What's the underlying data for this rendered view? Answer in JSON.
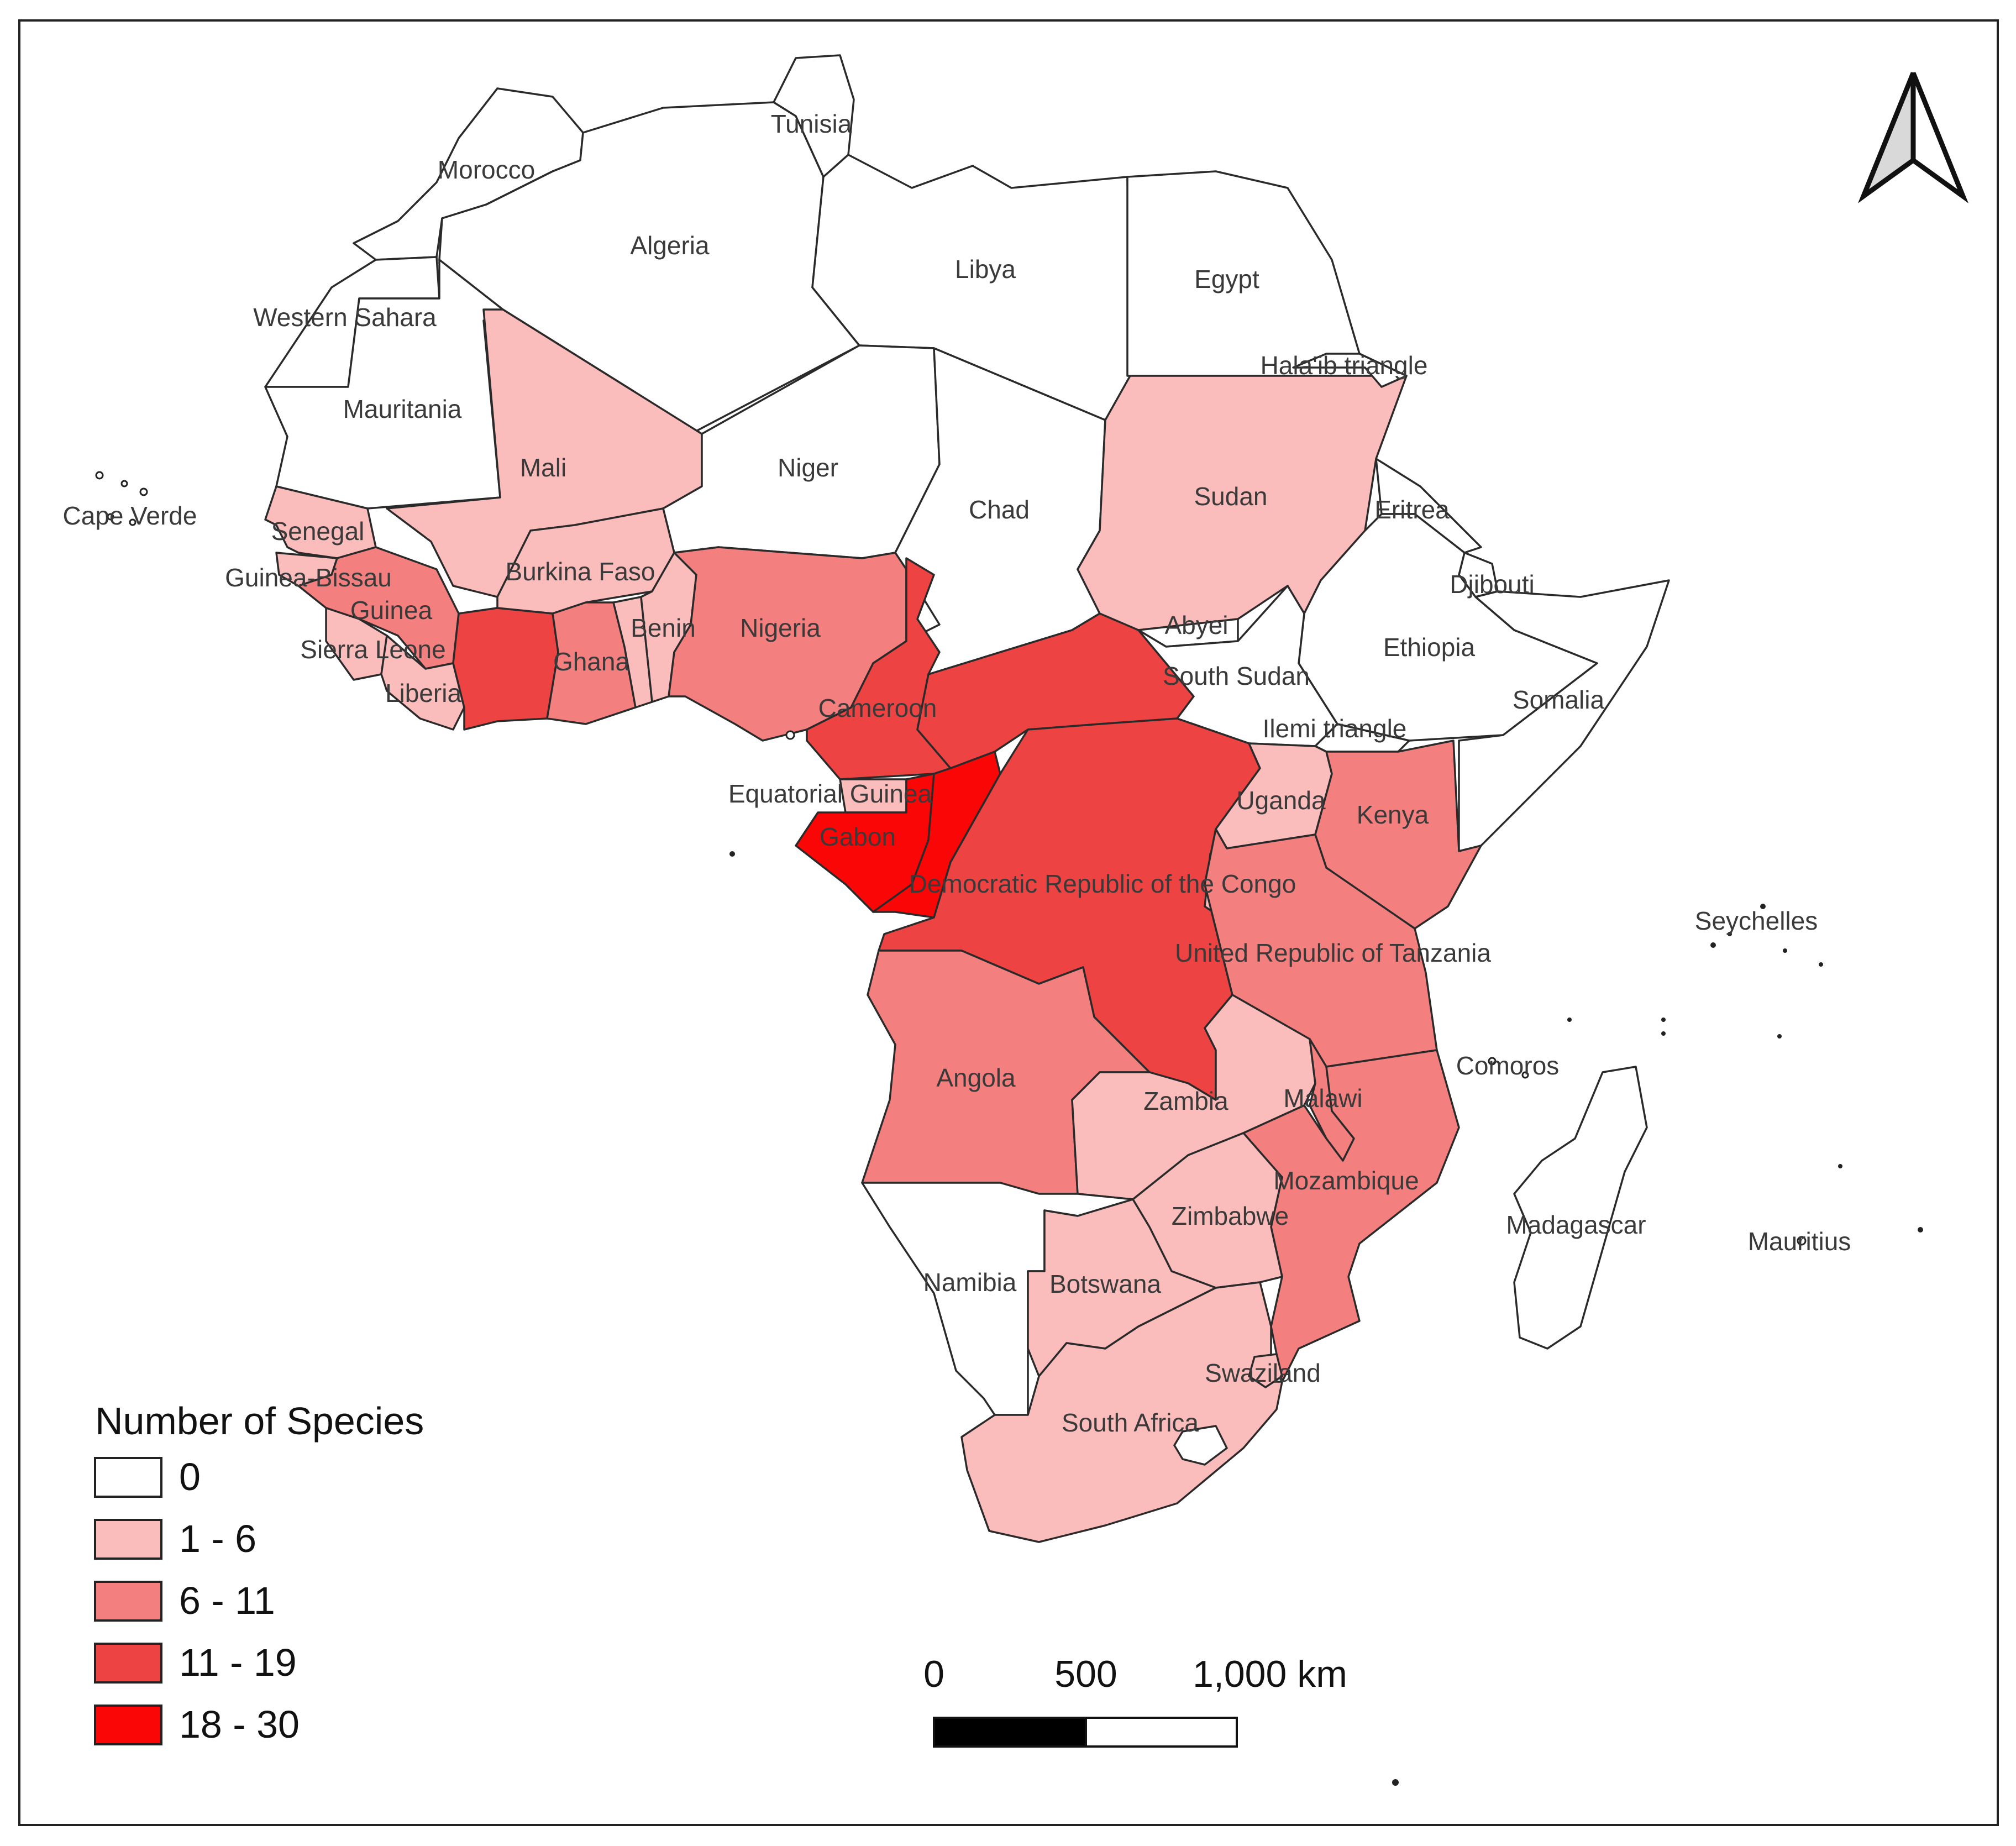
{
  "colors": {
    "class_0": "#ffffff",
    "class_1": "#fbbcbc",
    "class_2": "#f47f7f",
    "class_3": "#ee4343",
    "class_4": "#fa0606",
    "border": "#2a2a2a"
  },
  "legend": {
    "title": "Number of Species",
    "classes": [
      {
        "label": "0",
        "color": "#ffffff"
      },
      {
        "label": "1 - 6",
        "color": "#fbbcbc"
      },
      {
        "label": "6 - 11",
        "color": "#f47f7f"
      },
      {
        "label": "11 - 19",
        "color": "#ee4343"
      },
      {
        "label": "18 - 30",
        "color": "#fa0606"
      }
    ]
  },
  "scale_bar": {
    "labels": [
      "0",
      "500",
      "1,000 km"
    ]
  },
  "north_arrow": {
    "icon": "north-arrow-icon"
  },
  "countries": [
    {
      "id": "morocco",
      "label": "Morocco",
      "class": 0
    },
    {
      "id": "algeria",
      "label": "Algeria",
      "class": 0
    },
    {
      "id": "tunisia",
      "label": "Tunisia",
      "class": 0
    },
    {
      "id": "libya",
      "label": "Libya",
      "class": 0
    },
    {
      "id": "egypt",
      "label": "Egypt",
      "class": 0
    },
    {
      "id": "western-sahara",
      "label": "Western Sahara",
      "class": 0
    },
    {
      "id": "mauritania",
      "label": "Mauritania",
      "class": 0
    },
    {
      "id": "mali",
      "label": "Mali",
      "class": 1
    },
    {
      "id": "niger",
      "label": "Niger",
      "class": 0
    },
    {
      "id": "chad",
      "label": "Chad",
      "class": 0
    },
    {
      "id": "sudan",
      "label": "Sudan",
      "class": 1
    },
    {
      "id": "halaib",
      "label": "Hala'ib triangle",
      "class": 0
    },
    {
      "id": "eritrea",
      "label": "Eritrea",
      "class": 0
    },
    {
      "id": "djibouti",
      "label": "Djibouti",
      "class": 0
    },
    {
      "id": "ethiopia",
      "label": "Ethiopia",
      "class": 0
    },
    {
      "id": "somalia",
      "label": "Somalia",
      "class": 0
    },
    {
      "id": "cape-verde",
      "label": "Cape Verde",
      "class": 0
    },
    {
      "id": "senegal",
      "label": "Senegal",
      "class": 1
    },
    {
      "id": "guinea-bissau",
      "label": "Guinea-Bissau",
      "class": 1
    },
    {
      "id": "guinea",
      "label": "Guinea",
      "class": 2
    },
    {
      "id": "sierra-leone",
      "label": "Sierra Leone",
      "class": 1
    },
    {
      "id": "liberia",
      "label": "Liberia",
      "class": 1
    },
    {
      "id": "cote-divoire",
      "label": "",
      "class": 3
    },
    {
      "id": "burkina-faso",
      "label": "Burkina Faso",
      "class": 1
    },
    {
      "id": "ghana",
      "label": "Ghana",
      "class": 2
    },
    {
      "id": "togo",
      "label": "",
      "class": 1
    },
    {
      "id": "benin",
      "label": "Benin",
      "class": 1
    },
    {
      "id": "nigeria",
      "label": "Nigeria",
      "class": 2
    },
    {
      "id": "cameroon",
      "label": "Cameroon",
      "class": 3
    },
    {
      "id": "car",
      "label": "",
      "class": 3
    },
    {
      "id": "abyei",
      "label": "Abyei",
      "class": 0
    },
    {
      "id": "south-sudan",
      "label": "South Sudan",
      "class": 0
    },
    {
      "id": "ilemi",
      "label": "Ilemi triangle",
      "class": 0
    },
    {
      "id": "equatorial-guinea",
      "label": "Equatorial Guinea",
      "class": 1
    },
    {
      "id": "gabon",
      "label": "Gabon",
      "class": 4
    },
    {
      "id": "congo",
      "label": "",
      "class": 4
    },
    {
      "id": "drc",
      "label": "Democratic Republic of the Congo",
      "class": 3
    },
    {
      "id": "uganda",
      "label": "Uganda",
      "class": 1
    },
    {
      "id": "kenya",
      "label": "Kenya",
      "class": 2
    },
    {
      "id": "rwanda",
      "label": "",
      "class": 1
    },
    {
      "id": "tanzania",
      "label": "United Republic of Tanzania",
      "class": 2
    },
    {
      "id": "seychelles",
      "label": "Seychelles",
      "class": 0
    },
    {
      "id": "angola",
      "label": "Angola",
      "class": 2
    },
    {
      "id": "zambia",
      "label": "Zambia",
      "class": 1
    },
    {
      "id": "malawi",
      "label": "Malawi",
      "class": 2
    },
    {
      "id": "mozambique",
      "label": "Mozambique",
      "class": 2
    },
    {
      "id": "comoros",
      "label": "Comoros",
      "class": 0
    },
    {
      "id": "zimbabwe",
      "label": "Zimbabwe",
      "class": 1
    },
    {
      "id": "namibia",
      "label": "Namibia",
      "class": 0
    },
    {
      "id": "botswana",
      "label": "Botswana",
      "class": 1
    },
    {
      "id": "madagascar",
      "label": "Madagascar",
      "class": 0
    },
    {
      "id": "mauritius",
      "label": "Mauritius",
      "class": 0
    },
    {
      "id": "swaziland",
      "label": "Swaziland",
      "class": 1
    },
    {
      "id": "south-africa",
      "label": "South Africa",
      "class": 1
    },
    {
      "id": "lesotho",
      "label": "",
      "class": 0
    }
  ]
}
